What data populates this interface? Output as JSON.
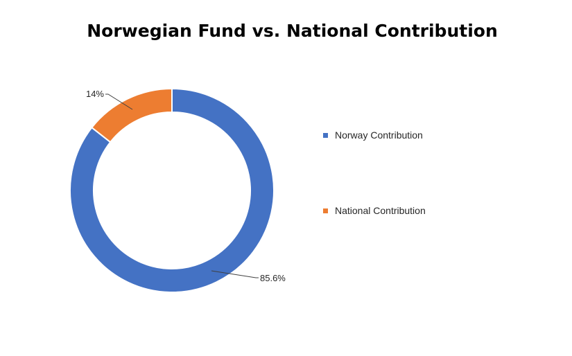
{
  "chart_data": {
    "type": "pie",
    "variant": "donut",
    "title": "Norwegian Fund vs. National Contribution",
    "slices": [
      {
        "name": "Norway Contribution",
        "value": 85.6,
        "label": "85.6%",
        "color": "#4472C4"
      },
      {
        "name": "National Contribution",
        "value": 14.4,
        "label": "14%",
        "color": "#ED7D31"
      }
    ],
    "legend_position": "right"
  }
}
